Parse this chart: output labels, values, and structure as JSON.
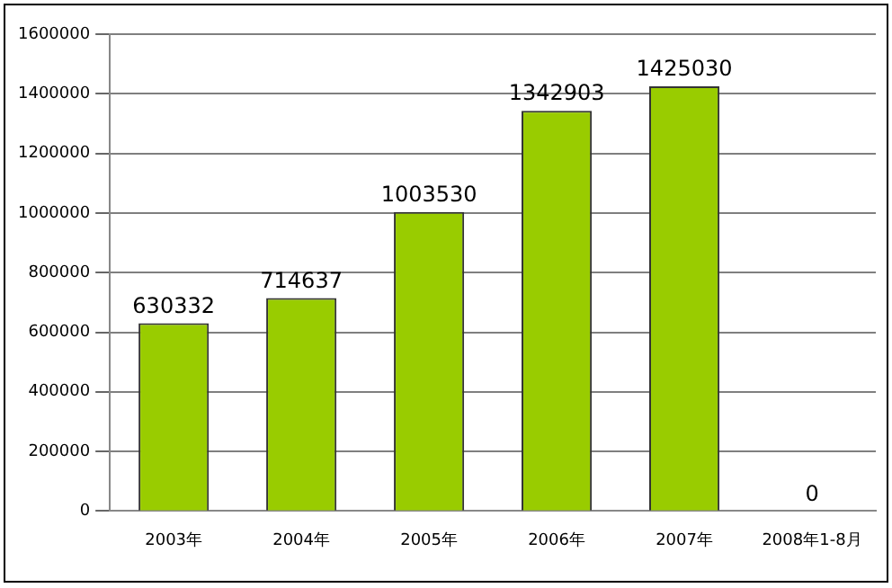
{
  "chart_data": {
    "type": "bar",
    "categories": [
      "2003年",
      "2004年",
      "2005年",
      "2006年",
      "2007年",
      "2008年1-8月"
    ],
    "values": [
      630332,
      714637,
      1003530,
      1342903,
      1425030,
      0
    ],
    "color": "#99cc00",
    "ylim": [
      0,
      1600000
    ],
    "yticks": [
      0,
      200000,
      400000,
      600000,
      800000,
      1000000,
      1200000,
      1400000,
      1600000
    ],
    "grid": "y",
    "data_labels": true,
    "legend": false
  }
}
